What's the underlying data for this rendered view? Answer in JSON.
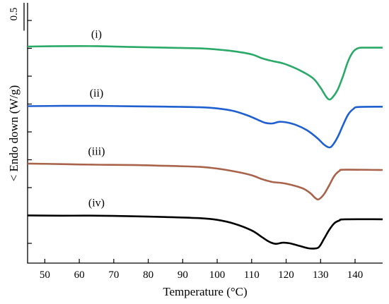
{
  "chart_data": {
    "type": "line",
    "title": "",
    "xlabel": "Temperature (°C)",
    "ylabel": "< Endo down (W/g)",
    "xlim": [
      45,
      148
    ],
    "x_ticks": [
      50,
      60,
      70,
      80,
      90,
      100,
      110,
      120,
      130,
      140
    ],
    "scale_bar": {
      "label": "0.5",
      "value": 0.5
    },
    "y_units_per_scale_bar": 0.5,
    "series": [
      {
        "name": "(i)",
        "color": "#2aa968",
        "points": [
          [
            45,
            0
          ],
          [
            55,
            0.007
          ],
          [
            65,
            0.007
          ],
          [
            75,
            -0.007
          ],
          [
            85,
            -0.02
          ],
          [
            95,
            -0.033
          ],
          [
            100,
            -0.053
          ],
          [
            105,
            -0.086
          ],
          [
            110,
            -0.14
          ],
          [
            113,
            -0.21
          ],
          [
            116,
            -0.26
          ],
          [
            119,
            -0.3
          ],
          [
            122,
            -0.37
          ],
          [
            125,
            -0.46
          ],
          [
            128,
            -0.58
          ],
          [
            130,
            -0.74
          ],
          [
            131.5,
            -0.89
          ],
          [
            132.5,
            -0.95
          ],
          [
            133.5,
            -0.91
          ],
          [
            135,
            -0.77
          ],
          [
            136.5,
            -0.53
          ],
          [
            138,
            -0.26
          ],
          [
            139.5,
            -0.09
          ],
          [
            141,
            -0.026
          ],
          [
            143,
            -0.02
          ],
          [
            148,
            -0.02
          ]
        ]
      },
      {
        "name": "(ii)",
        "color": "#1f5fcf",
        "points": [
          [
            45,
            -1.07
          ],
          [
            55,
            -1.065
          ],
          [
            65,
            -1.065
          ],
          [
            75,
            -1.072
          ],
          [
            85,
            -1.078
          ],
          [
            95,
            -1.09
          ],
          [
            100,
            -1.11
          ],
          [
            105,
            -1.16
          ],
          [
            109,
            -1.24
          ],
          [
            112,
            -1.32
          ],
          [
            114,
            -1.37
          ],
          [
            116,
            -1.38
          ],
          [
            118,
            -1.35
          ],
          [
            120,
            -1.36
          ],
          [
            123,
            -1.41
          ],
          [
            126,
            -1.5
          ],
          [
            129,
            -1.64
          ],
          [
            131,
            -1.76
          ],
          [
            132.5,
            -1.81
          ],
          [
            133.5,
            -1.77
          ],
          [
            135,
            -1.62
          ],
          [
            136.5,
            -1.41
          ],
          [
            138,
            -1.22
          ],
          [
            139.5,
            -1.12
          ],
          [
            141,
            -1.085
          ],
          [
            148,
            -1.08
          ]
        ]
      },
      {
        "name": "(iii)",
        "color": "#a8634a",
        "points": [
          [
            45,
            -2.1
          ],
          [
            55,
            -2.11
          ],
          [
            65,
            -2.12
          ],
          [
            75,
            -2.125
          ],
          [
            85,
            -2.14
          ],
          [
            95,
            -2.16
          ],
          [
            100,
            -2.19
          ],
          [
            105,
            -2.24
          ],
          [
            110,
            -2.31
          ],
          [
            113,
            -2.38
          ],
          [
            116,
            -2.43
          ],
          [
            119,
            -2.45
          ],
          [
            122,
            -2.49
          ],
          [
            125,
            -2.55
          ],
          [
            127,
            -2.63
          ],
          [
            128.5,
            -2.72
          ],
          [
            129.5,
            -2.74
          ],
          [
            131,
            -2.65
          ],
          [
            132.5,
            -2.49
          ],
          [
            134,
            -2.32
          ],
          [
            135.5,
            -2.23
          ],
          [
            137,
            -2.21
          ],
          [
            148,
            -2.215
          ]
        ]
      },
      {
        "name": "(iv)",
        "color": "#000000",
        "points": [
          [
            45,
            -3.03
          ],
          [
            55,
            -3.035
          ],
          [
            65,
            -3.035
          ],
          [
            75,
            -3.045
          ],
          [
            85,
            -3.06
          ],
          [
            95,
            -3.08
          ],
          [
            100,
            -3.11
          ],
          [
            105,
            -3.18
          ],
          [
            110,
            -3.3
          ],
          [
            113,
            -3.42
          ],
          [
            115,
            -3.5
          ],
          [
            117,
            -3.54
          ],
          [
            119,
            -3.52
          ],
          [
            121,
            -3.53
          ],
          [
            124,
            -3.58
          ],
          [
            126.5,
            -3.62
          ],
          [
            128,
            -3.625
          ],
          [
            129.5,
            -3.6
          ],
          [
            131,
            -3.45
          ],
          [
            132.5,
            -3.29
          ],
          [
            134,
            -3.17
          ],
          [
            135.5,
            -3.12
          ],
          [
            137,
            -3.1
          ],
          [
            148,
            -3.1
          ]
        ]
      }
    ],
    "labels": [
      {
        "text": "(i)",
        "x": 65,
        "y": 0.16
      },
      {
        "text": "(ii)",
        "x": 65,
        "y": -0.9
      },
      {
        "text": "(iii)",
        "x": 65,
        "y": -1.94
      },
      {
        "text": "(iv)",
        "x": 65,
        "y": -2.87
      }
    ],
    "grid": false
  }
}
